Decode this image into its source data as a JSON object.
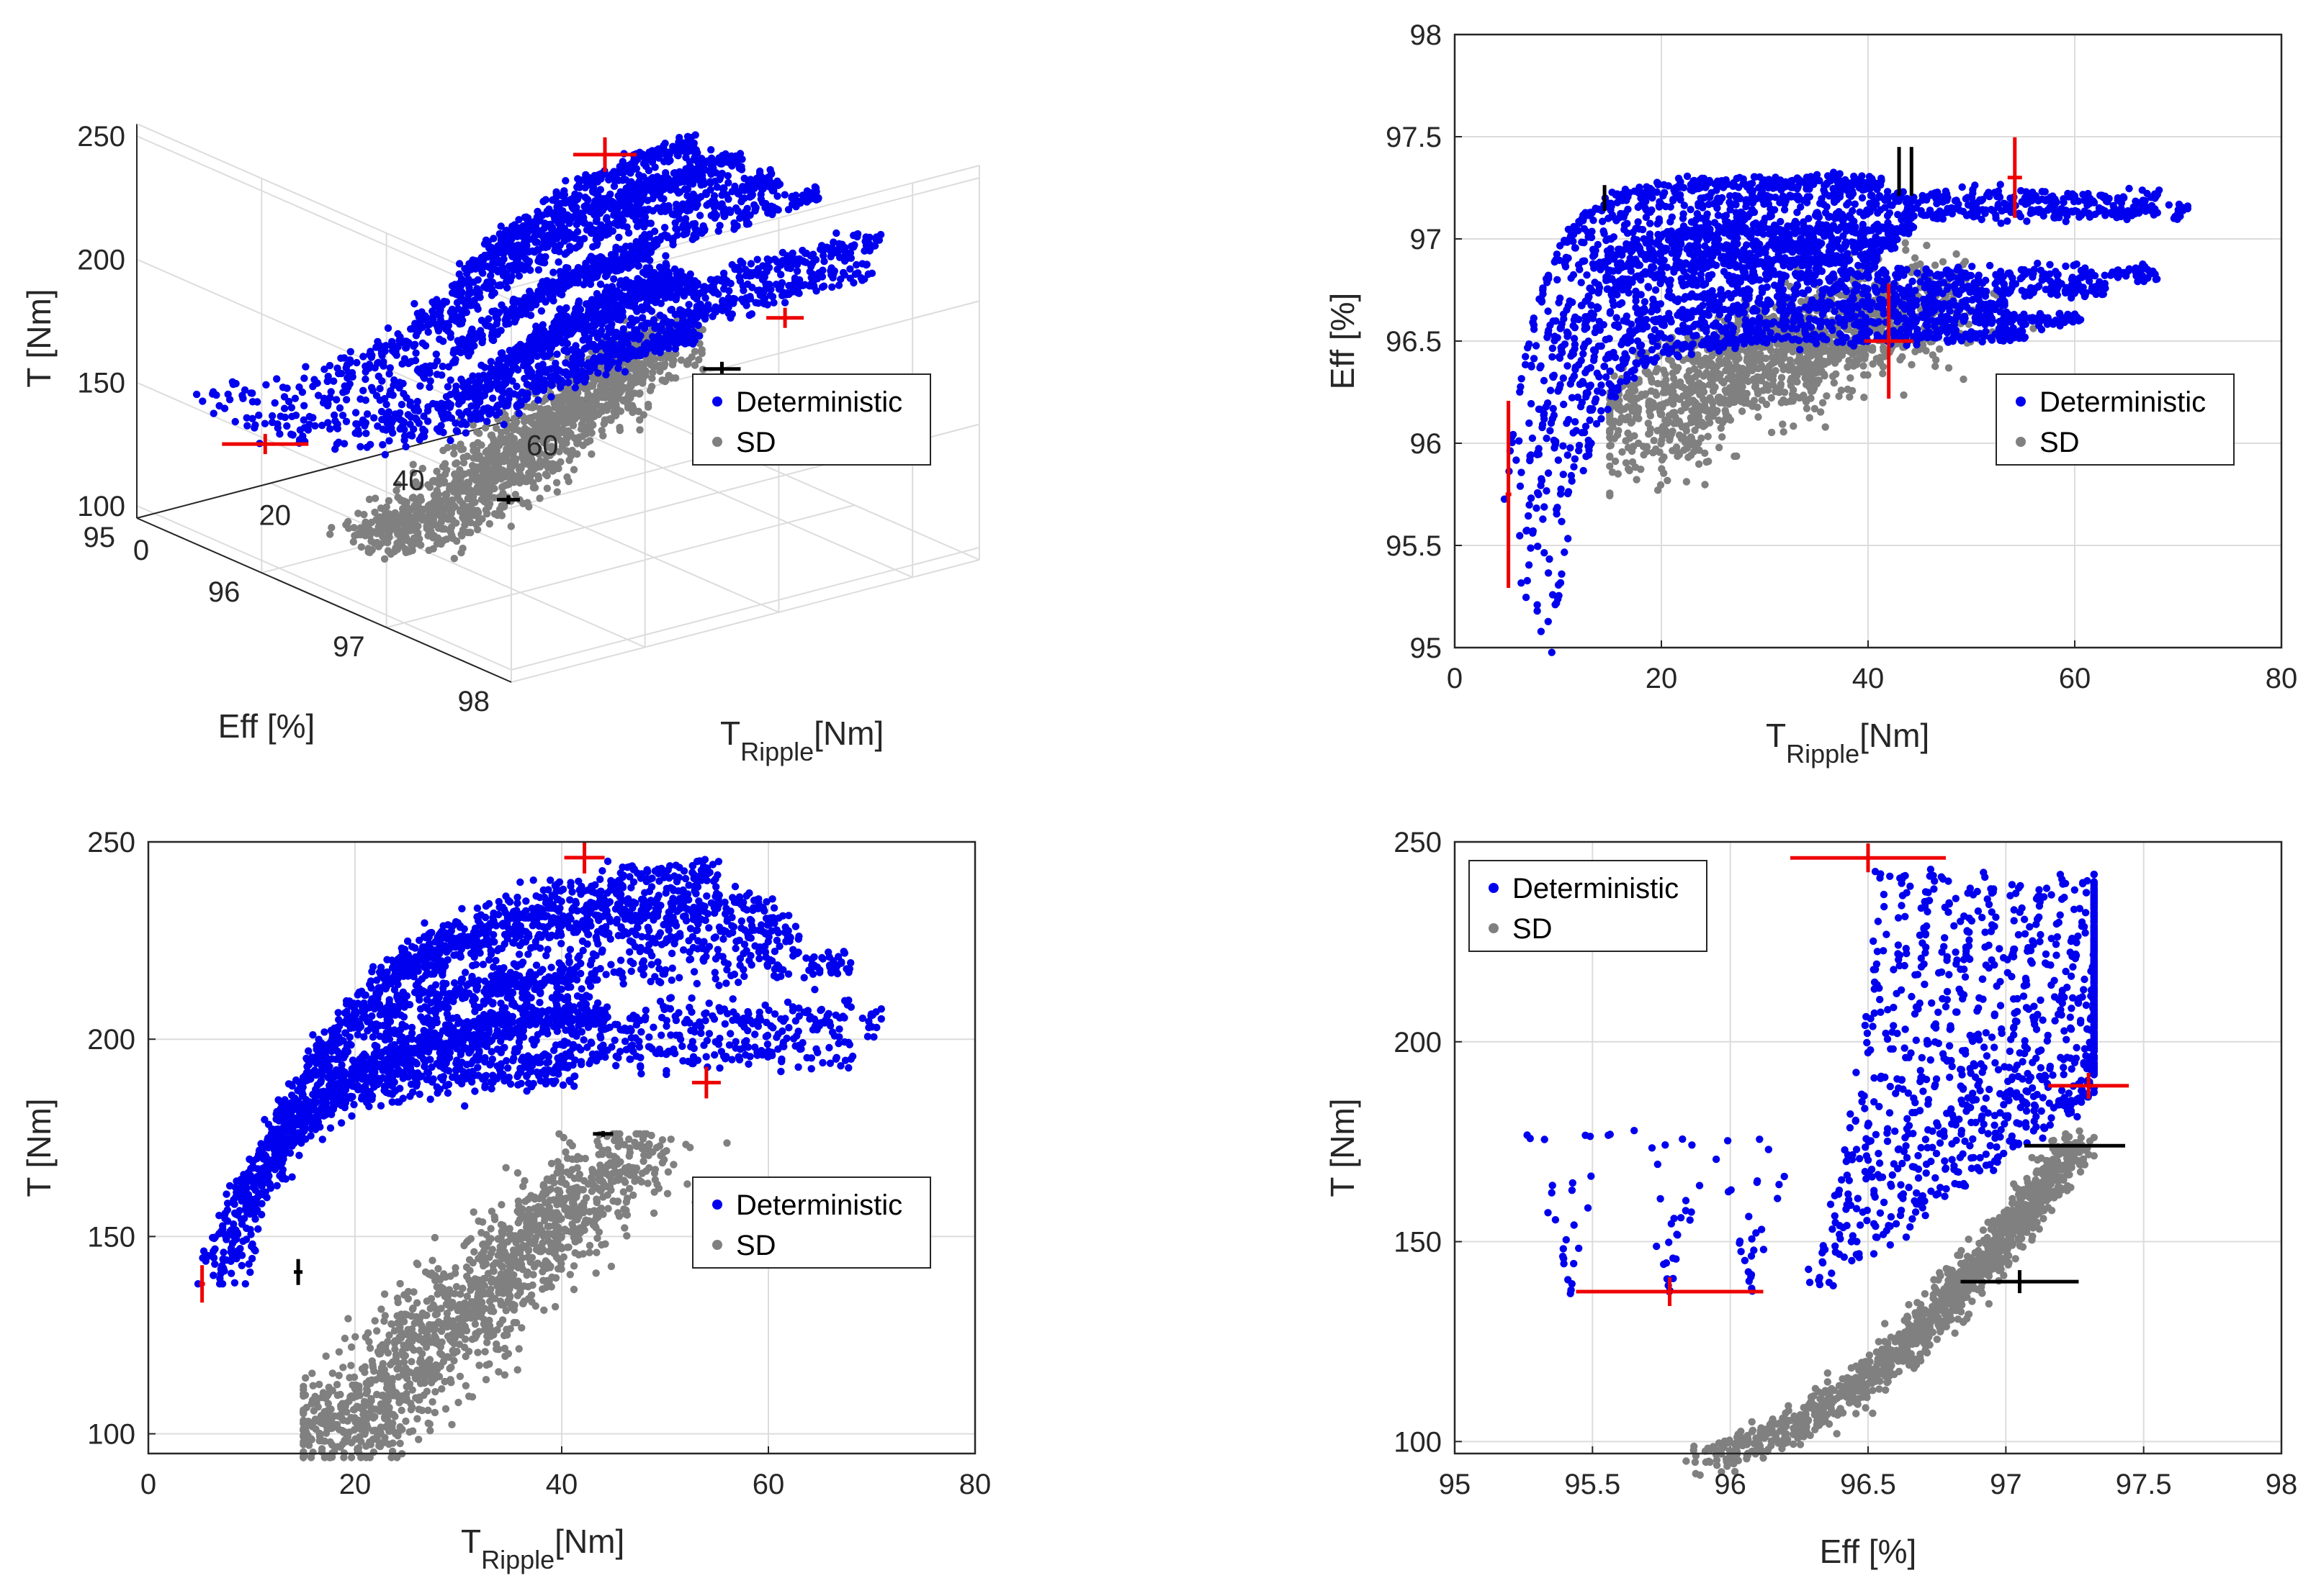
{
  "colors": {
    "deterministic": "#0000ee",
    "sd": "#808080",
    "marker_red": "#ee0000",
    "marker_black": "#000000",
    "axis": "#262626",
    "grid": "#dcdcdc"
  },
  "legend": {
    "deterministic": "Deterministic",
    "sd": "SD"
  },
  "chart_data": [
    {
      "id": "panel-3d",
      "type": "scatter3d",
      "xlabel_main": "T",
      "xlabel_sub": "Ripple",
      "xlabel_unit": "[Nm]",
      "ylabel": "Eff [%]",
      "zlabel": "T [Nm]",
      "x_ticks": [
        "0",
        "20",
        "40",
        "60"
      ],
      "y_ticks": [
        "95",
        "96",
        "97",
        "98"
      ],
      "z_ticks": [
        "100",
        "150",
        "200",
        "250"
      ],
      "xlim": [
        0,
        70
      ],
      "ylim": [
        95,
        98
      ],
      "zlim": [
        95,
        255
      ],
      "legend_position": "center-right"
    },
    {
      "id": "panel-eff-vs-ripple",
      "type": "scatter",
      "xlabel_main": "T",
      "xlabel_sub": "Ripple",
      "xlabel_unit": "[Nm]",
      "ylabel": "Eff [%]",
      "x_ticks": [
        "0",
        "20",
        "40",
        "60",
        "80"
      ],
      "y_ticks": [
        "95",
        "95.5",
        "96",
        "96.5",
        "97",
        "97.5",
        "98"
      ],
      "xlim": [
        0,
        80
      ],
      "ylim": [
        95,
        98
      ],
      "legend_position": "right"
    },
    {
      "id": "panel-torque-vs-ripple",
      "type": "scatter",
      "xlabel_main": "T",
      "xlabel_sub": "Ripple",
      "xlabel_unit": "[Nm]",
      "ylabel": "T [Nm]",
      "x_ticks": [
        "0",
        "20",
        "40",
        "60",
        "80"
      ],
      "y_ticks": [
        "100",
        "150",
        "200",
        "250"
      ],
      "xlim": [
        0,
        80
      ],
      "ylim": [
        95,
        250
      ],
      "legend_position": "right"
    },
    {
      "id": "panel-torque-vs-eff",
      "type": "scatter",
      "xlabel_main": "Eff [%]",
      "ylabel": "T [Nm]",
      "x_ticks": [
        "95",
        "95.5",
        "96",
        "96.5",
        "97",
        "97.5",
        "98"
      ],
      "y_ticks": [
        "100",
        "150",
        "200",
        "250"
      ],
      "xlim": [
        95,
        98
      ],
      "ylim": [
        97,
        250
      ],
      "legend_position": "top-left"
    }
  ]
}
